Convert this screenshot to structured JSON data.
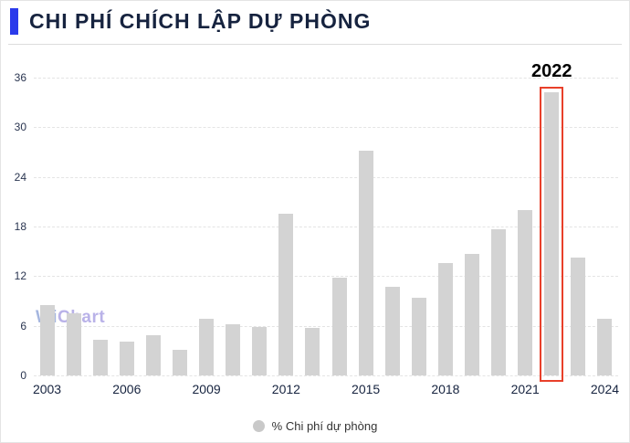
{
  "title": "CHI PHÍ CHÍCH LẬP DỰ PHÒNG",
  "watermark": {
    "part1": "Wi",
    "part2": "Chart"
  },
  "legend": {
    "label": "% Chi phí dự phòng"
  },
  "annotation": {
    "label": "2022"
  },
  "colors": {
    "accent": "#2b3beb",
    "title_text": "#16233f",
    "bar": "#d3d3d3",
    "highlight": "#e8402a",
    "grid": "#e4e4e4",
    "axis_text": "#2a3550"
  },
  "chart_data": {
    "type": "bar",
    "title": "CHI PHÍ CHÍCH LẬP DỰ PHÒNG",
    "x": [
      2003,
      2004,
      2005,
      2006,
      2007,
      2008,
      2009,
      2010,
      2011,
      2012,
      2013,
      2014,
      2015,
      2016,
      2017,
      2018,
      2019,
      2020,
      2021,
      2022,
      2023,
      2024
    ],
    "values": [
      8.5,
      7.5,
      4.3,
      4.1,
      4.9,
      3.1,
      6.8,
      6.2,
      5.9,
      19.5,
      5.7,
      11.8,
      27.2,
      10.7,
      9.4,
      13.6,
      14.7,
      17.7,
      20.0,
      34.2,
      14.2,
      6.9
    ],
    "ylim": [
      0,
      36
    ],
    "yticks": [
      0,
      6,
      12,
      18,
      24,
      30,
      36
    ],
    "xticks": [
      2003,
      2006,
      2009,
      2012,
      2015,
      2018,
      2021,
      2024
    ],
    "highlight_year": 2022,
    "annotation_label": "2022",
    "legend": [
      "% Chi phí dự phòng"
    ],
    "grid": true,
    "legend_position": "bottom-center"
  }
}
